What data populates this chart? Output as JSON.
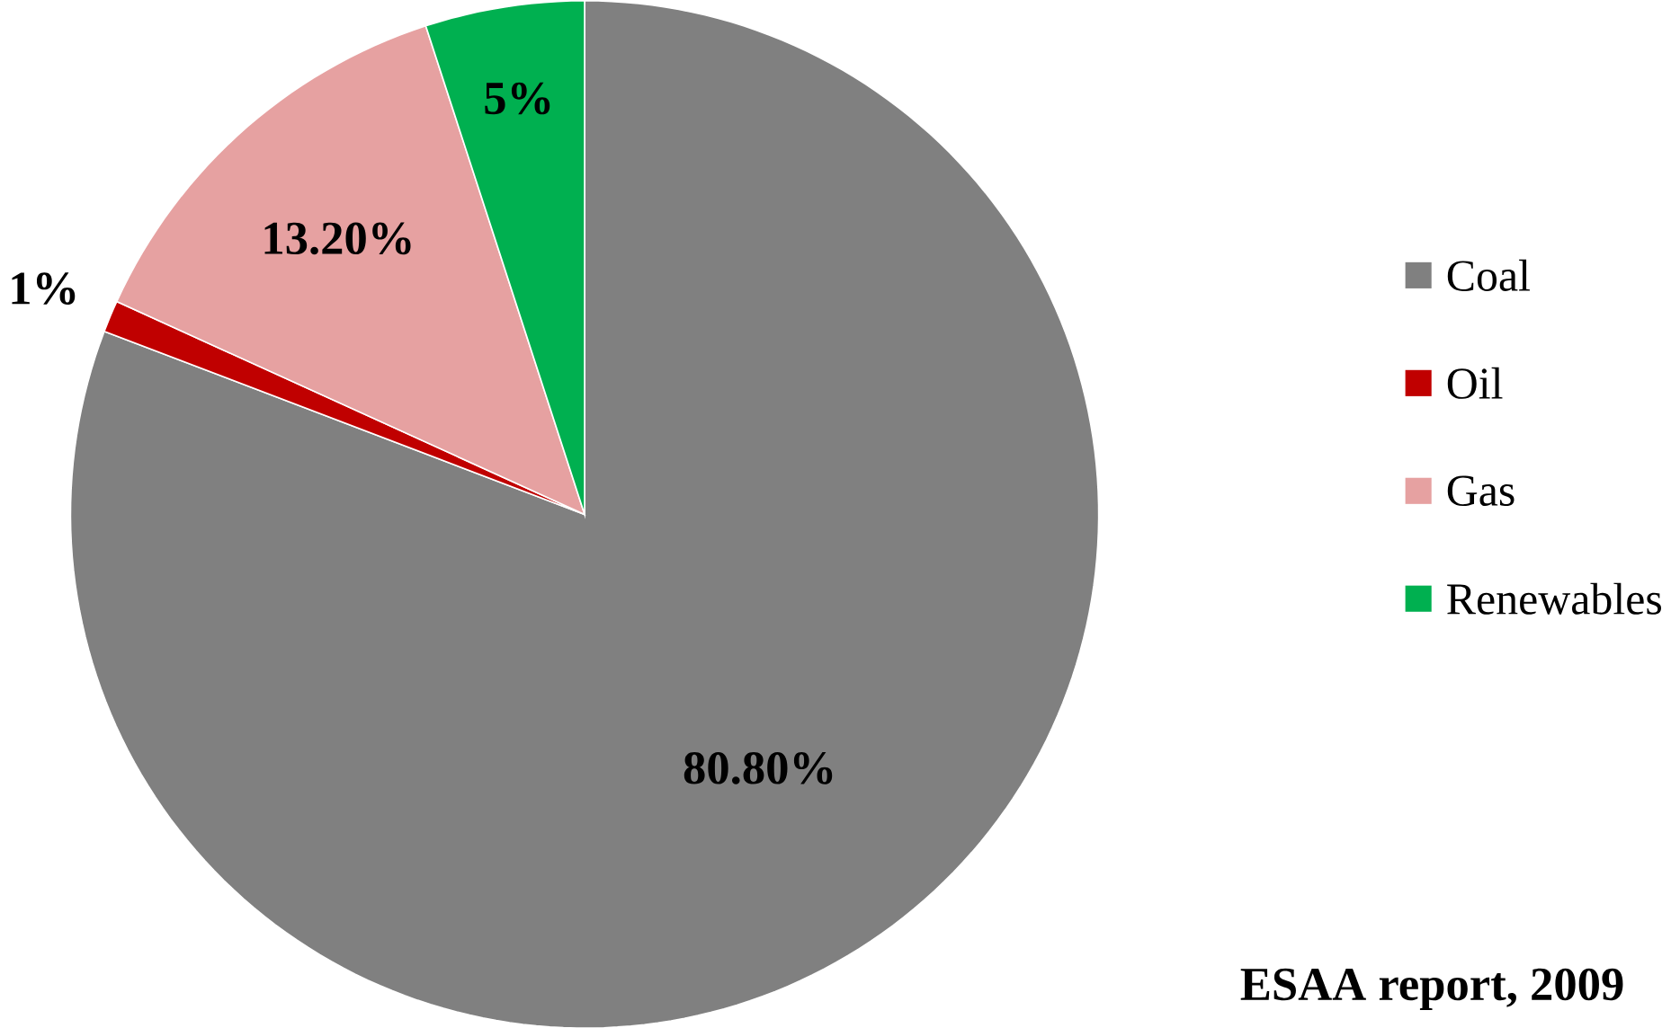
{
  "chart_data": {
    "type": "pie",
    "categories": [
      "Coal",
      "Oil",
      "Gas",
      "Renewables"
    ],
    "values": [
      80.8,
      1,
      13.2,
      5
    ],
    "value_labels": [
      "80.80%",
      "1%",
      "13.20%",
      "5%"
    ],
    "colors": [
      "#808080",
      "#c00000",
      "#e6a1a1",
      "#00b050"
    ],
    "legend": "right",
    "annotations": [
      "ESAA report, 2009"
    ]
  }
}
